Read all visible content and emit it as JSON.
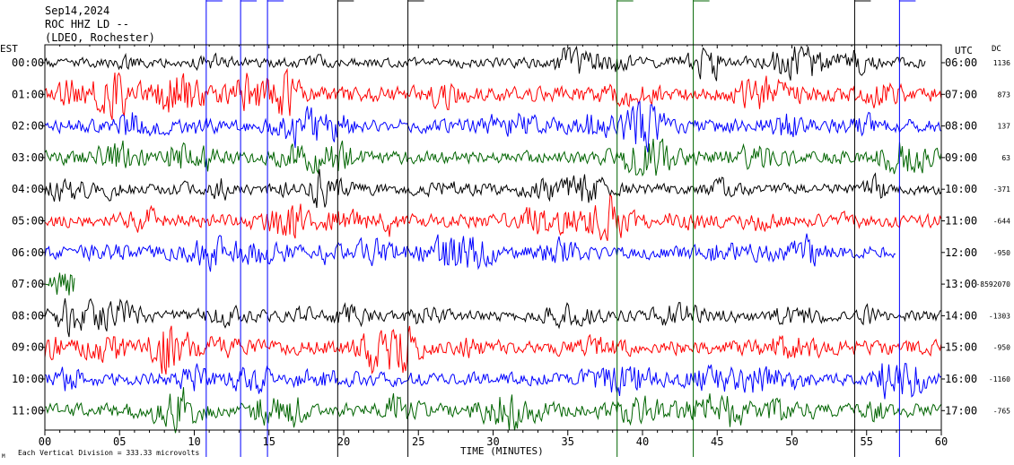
{
  "header": {
    "date": "Sep14,2024",
    "station": "ROC HHZ LD --",
    "network": "(LDEO, Rochester)"
  },
  "labels": {
    "left_tz": "EST",
    "right_tz": "UTC",
    "dc_header": "DC",
    "xlabel": "TIME (MINUTES)",
    "scale_note": "Each Vertical Division = 333.33 microvolts",
    "corner_mark": "M"
  },
  "chart_data": {
    "type": "line",
    "title": "",
    "xlabel": "TIME (MINUTES)",
    "ylabel": "",
    "xlim": [
      0,
      60
    ],
    "x_ticks": [
      0,
      5,
      10,
      15,
      20,
      25,
      30,
      35,
      40,
      45,
      50,
      55,
      60
    ],
    "x_tick_labels": [
      "00",
      "05",
      "10",
      "15",
      "20",
      "25",
      "30",
      "35",
      "40",
      "45",
      "50",
      "55",
      "60"
    ],
    "left_labels": [
      "00:00",
      "01:00",
      "02:00",
      "03:00",
      "04:00",
      "05:00",
      "06:00",
      "07:00",
      "08:00",
      "09:00",
      "10:00",
      "11:00"
    ],
    "right_labels": [
      "06:00",
      "07:00",
      "08:00",
      "09:00",
      "10:00",
      "11:00",
      "12:00",
      "13:00",
      "14:00",
      "15:00",
      "16:00",
      "17:00"
    ],
    "dc_values": [
      "1136",
      "873",
      "137",
      "63",
      "-371",
      "-644",
      "-950",
      "-8592070",
      "-1303",
      "-950",
      "-1160",
      "-765"
    ],
    "trace_colors": [
      "#000000",
      "#ff0000",
      "#0000ff",
      "#006400"
    ],
    "series": [
      {
        "values": {
          "start": 0,
          "end": 59,
          "amp": 1.0
        },
        "color": "#000000"
      },
      {
        "values": {
          "start": 0,
          "end": 60,
          "amp": 1.6
        },
        "color": "#ff0000"
      },
      {
        "values": {
          "start": 0,
          "end": 60,
          "amp": 1.4
        },
        "color": "#0000ff"
      },
      {
        "values": {
          "start": 0,
          "end": 60,
          "amp": 1.3
        },
        "color": "#006400"
      },
      {
        "values": {
          "start": 0,
          "end": 60,
          "amp": 1.1
        },
        "color": "#000000"
      },
      {
        "values": {
          "start": 0,
          "end": 60,
          "amp": 1.3
        },
        "color": "#ff0000"
      },
      {
        "values": {
          "start": 0,
          "end": 57,
          "amp": 1.3
        },
        "color": "#0000ff"
      },
      {
        "values": {
          "start": 0,
          "end": 2,
          "amp": 0.3
        },
        "color": "#006400"
      },
      {
        "values": {
          "start": 0,
          "end": 60,
          "amp": 1.1
        },
        "color": "#000000"
      },
      {
        "values": {
          "start": 0,
          "end": 60,
          "amp": 1.5
        },
        "color": "#ff0000"
      },
      {
        "values": {
          "start": 0,
          "end": 60,
          "amp": 1.3
        },
        "color": "#0000ff"
      },
      {
        "values": {
          "start": 0,
          "end": 60,
          "amp": 1.4
        },
        "color": "#006400"
      }
    ],
    "spikes": [
      {
        "minute": 10.8,
        "color": "#0000ff"
      },
      {
        "minute": 13.1,
        "color": "#0000ff"
      },
      {
        "minute": 14.9,
        "color": "#0000ff"
      },
      {
        "minute": 19.6,
        "color": "#000000"
      },
      {
        "minute": 24.3,
        "color": "#000000"
      },
      {
        "minute": 38.3,
        "color": "#006400"
      },
      {
        "minute": 43.4,
        "color": "#006400"
      },
      {
        "minute": 54.2,
        "color": "#000000"
      },
      {
        "minute": 57.2,
        "color": "#0000ff"
      }
    ]
  }
}
